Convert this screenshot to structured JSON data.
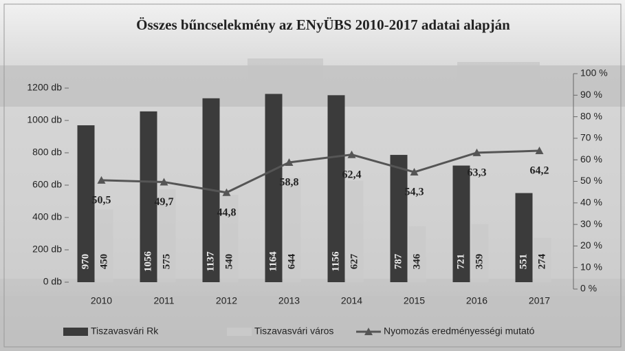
{
  "chart_data": {
    "type": "bar",
    "title": "Összes bűncselekmény az ENyÜBS 2010-2017 adatai alapján",
    "categories": [
      "2010",
      "2011",
      "2012",
      "2013",
      "2014",
      "2015",
      "2016",
      "2017"
    ],
    "series": [
      {
        "name": "Tiszavasvári Rk",
        "color": "#3b3b3b",
        "values": [
          970,
          1056,
          1137,
          1164,
          1156,
          787,
          721,
          551
        ]
      },
      {
        "name": "Tiszavasvári város",
        "color": "#c9c9c9",
        "values": [
          450,
          575,
          540,
          644,
          627,
          346,
          359,
          274
        ]
      },
      {
        "name": "Nyomozás eredményességi mutató",
        "color": "#555555",
        "axis": "y2",
        "type": "line",
        "values": [
          50.5,
          49.7,
          44.8,
          58.8,
          62.4,
          54.3,
          63.3,
          64.2
        ],
        "value_labels": [
          "50,5",
          "49,7",
          "44,8",
          "58,8",
          "62,4",
          "54,3",
          "63,3",
          "64,2"
        ]
      }
    ],
    "ylim": [
      0,
      1200
    ],
    "yticks": [
      {
        "value": 0,
        "label": "0 db"
      },
      {
        "value": 200,
        "label": "200 db"
      },
      {
        "value": 400,
        "label": "400 db"
      },
      {
        "value": 600,
        "label": "600 db"
      },
      {
        "value": 800,
        "label": "800 db"
      },
      {
        "value": 1000,
        "label": "1000 db"
      },
      {
        "value": 1200,
        "label": "1200 db"
      }
    ],
    "y2lim": [
      0,
      100
    ],
    "y2ticks": [
      {
        "value": 0,
        "label": "0 %"
      },
      {
        "value": 10,
        "label": "10 %"
      },
      {
        "value": 20,
        "label": "20 %"
      },
      {
        "value": 30,
        "label": "30 %"
      },
      {
        "value": 40,
        "label": "40 %"
      },
      {
        "value": 50,
        "label": "50 %"
      },
      {
        "value": 60,
        "label": "60 %"
      },
      {
        "value": 70,
        "label": "70 %"
      },
      {
        "value": 80,
        "label": "80 %"
      },
      {
        "value": 90,
        "label": "90 %"
      },
      {
        "value": 100,
        "label": "100 %"
      }
    ],
    "legend": "bottom"
  }
}
